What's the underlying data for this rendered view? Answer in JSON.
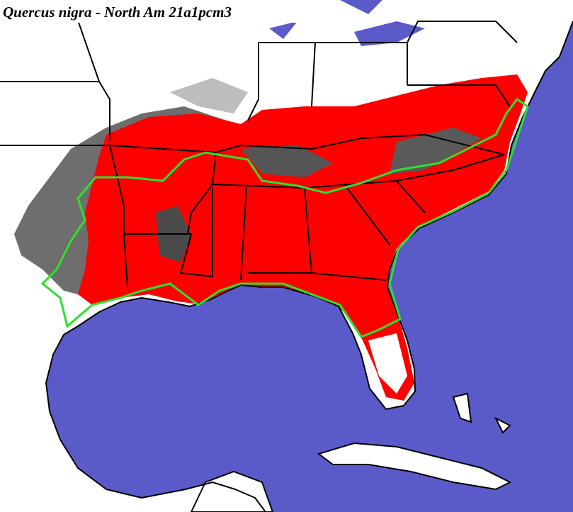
{
  "title": "Quercus nigra - North Am 21a1pcm3"
}
